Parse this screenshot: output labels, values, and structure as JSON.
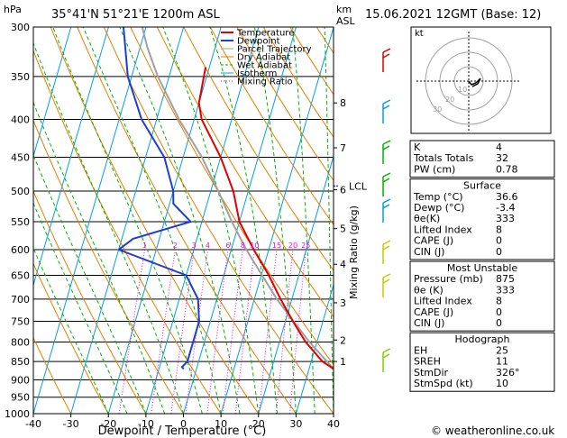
{
  "header": {
    "hpa": "hPa",
    "location": "35°41'N  51°21'E  1200m  ASL",
    "km": "km",
    "asl": "ASL",
    "datetime": "15.06.2021  12GMT  (Base: 12)"
  },
  "chart_data": {
    "type": "skew-t",
    "xlabel": "Dewpoint / Temperature (°C)",
    "x_ticks": [
      -40,
      -30,
      -20,
      -10,
      0,
      10,
      20,
      30,
      40
    ],
    "pressure_ticks": [
      300,
      350,
      400,
      450,
      500,
      550,
      600,
      650,
      700,
      750,
      800,
      850,
      900,
      950,
      1000
    ],
    "ylim_hpa": [
      1000,
      300
    ],
    "km_ticks": [
      {
        "km": "8",
        "p": 380
      },
      {
        "km": "7",
        "p": 437
      },
      {
        "km": "6",
        "p": 498
      },
      {
        "km": "5",
        "p": 562
      },
      {
        "km": "4",
        "p": 628
      },
      {
        "km": "3",
        "p": 708
      },
      {
        "km": "2",
        "p": 795
      },
      {
        "km": "1",
        "p": 850
      }
    ],
    "lcl": {
      "label": "LCL",
      "p": 492
    },
    "mixing_ratio_label": "Mixing Ratio (g/kg)",
    "mixing_ratio_values": [
      "1",
      "2",
      "3",
      "4",
      "6",
      "8",
      "10",
      "15",
      "20",
      "25"
    ],
    "legend": [
      {
        "name": "Temperature",
        "color": "#e00000"
      },
      {
        "name": "Dewpoint",
        "color": "#1e3cd7"
      },
      {
        "name": "Parcel Trajectory",
        "color": "#a0a0a0"
      },
      {
        "name": "Dry Adiabat",
        "color": "#e08000"
      },
      {
        "name": "Wet Adiabat",
        "color": "#00b400"
      },
      {
        "name": "Isotherm",
        "color": "#00a0e0"
      },
      {
        "name": "Mixing Ratio",
        "color": "#ff00ff"
      }
    ],
    "series": [
      {
        "name": "Temperature",
        "points": [
          [
            870,
            36.6
          ],
          [
            850,
            33
          ],
          [
            800,
            27
          ],
          [
            750,
            22
          ],
          [
            700,
            17
          ],
          [
            650,
            12
          ],
          [
            600,
            6
          ],
          [
            550,
            0
          ],
          [
            500,
            -4
          ],
          [
            450,
            -10
          ],
          [
            400,
            -18
          ],
          [
            380,
            -20
          ],
          [
            340,
            -21
          ]
        ]
      },
      {
        "name": "Dewpoint",
        "points": [
          [
            870,
            -3.4
          ],
          [
            865,
            -4
          ],
          [
            850,
            -3
          ],
          [
            800,
            -3
          ],
          [
            750,
            -3
          ],
          [
            700,
            -5
          ],
          [
            650,
            -10
          ],
          [
            600,
            -30
          ],
          [
            580,
            -27
          ],
          [
            550,
            -13
          ],
          [
            520,
            -19
          ],
          [
            500,
            -20
          ],
          [
            450,
            -25
          ],
          [
            400,
            -34
          ],
          [
            350,
            -41
          ],
          [
            300,
            -46
          ]
        ]
      },
      {
        "name": "Parcel Trajectory",
        "points": [
          [
            870,
            36.6
          ],
          [
            800,
            28
          ],
          [
            700,
            16
          ],
          [
            600,
            4
          ],
          [
            550,
            -2
          ],
          [
            500,
            -8
          ],
          [
            450,
            -15
          ],
          [
            400,
            -24
          ],
          [
            350,
            -33
          ],
          [
            320,
            -38
          ],
          [
            300,
            -41
          ]
        ]
      }
    ]
  },
  "hodograph": {
    "label": "kt",
    "rings": [
      "10",
      "20",
      "30"
    ]
  },
  "indices": [
    {
      "label": "K",
      "value": "4"
    },
    {
      "label": "Totals Totals",
      "value": "32"
    },
    {
      "label": "PW (cm)",
      "value": "0.78"
    }
  ],
  "surface": {
    "title": "Surface",
    "rows": [
      {
        "label": "Temp (°C)",
        "value": "36.6"
      },
      {
        "label": "Dewp (°C)",
        "value": "-3.4"
      },
      {
        "label": "θe(K)",
        "value": "333"
      },
      {
        "label": "Lifted Index",
        "value": "8"
      },
      {
        "label": "CAPE (J)",
        "value": "0"
      },
      {
        "label": "CIN (J)",
        "value": "0"
      }
    ]
  },
  "most_unstable": {
    "title": "Most Unstable",
    "rows": [
      {
        "label": "Pressure (mb)",
        "value": "875"
      },
      {
        "label": "θe (K)",
        "value": "333"
      },
      {
        "label": "Lifted Index",
        "value": "8"
      },
      {
        "label": "CAPE (J)",
        "value": "0"
      },
      {
        "label": "CIN (J)",
        "value": "0"
      }
    ]
  },
  "hodograph_table": {
    "title": "Hodograph",
    "rows": [
      {
        "label": "EH",
        "value": "25"
      },
      {
        "label": "SREH",
        "value": "11"
      },
      {
        "label": "StmDir",
        "value": "326°"
      },
      {
        "label": "StmSpd (kt)",
        "value": "10"
      }
    ]
  },
  "footer": {
    "copyright": "© weatheronline.co.uk"
  }
}
